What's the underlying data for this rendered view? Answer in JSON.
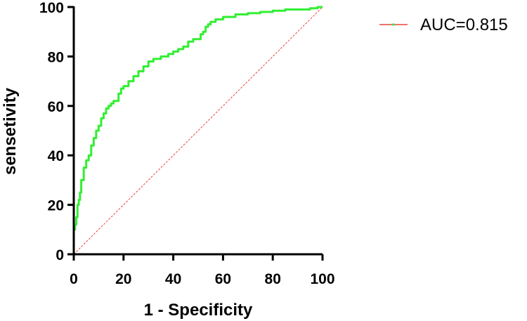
{
  "chart_data": {
    "type": "line",
    "xlabel": "1 - Specificity",
    "ylabel": "sensetivity",
    "xlim": [
      0,
      100
    ],
    "ylim": [
      0,
      100
    ],
    "x_ticks": [
      0,
      20,
      40,
      60,
      80,
      100
    ],
    "y_ticks": [
      0,
      20,
      40,
      60,
      80,
      100
    ],
    "grid": false,
    "legend_position": "top-right",
    "series": [
      {
        "name": "AUC=0.815",
        "color": "#33ee33",
        "marker_color": "#33ee33",
        "x": [
          0,
          0,
          0.5,
          1,
          1.5,
          2,
          2.5,
          3,
          4,
          5,
          6,
          7,
          8,
          9,
          10,
          11,
          12,
          13,
          14,
          15,
          16,
          18,
          19,
          20,
          22,
          24,
          26,
          28,
          30,
          32,
          35,
          38,
          40,
          42,
          44,
          46,
          48,
          50,
          51,
          52,
          53,
          54,
          55,
          57,
          60,
          65,
          70,
          75,
          80,
          85,
          90,
          95,
          98,
          100
        ],
        "y": [
          0,
          10,
          12,
          15,
          20,
          22,
          25,
          30,
          35,
          38,
          40,
          44,
          47,
          50,
          52,
          55,
          57,
          59,
          60,
          61,
          62,
          65,
          67,
          68,
          70,
          72,
          74,
          76,
          78,
          79,
          80,
          81,
          82,
          83,
          84,
          86,
          87,
          87,
          89,
          90,
          92,
          93,
          94,
          95,
          96,
          97,
          97.5,
          98,
          98.5,
          99,
          99,
          99.5,
          100,
          100
        ]
      },
      {
        "name": "",
        "color": "#e8453c",
        "dashed": true,
        "x": [
          0,
          100
        ],
        "y": [
          0,
          100
        ]
      }
    ]
  }
}
